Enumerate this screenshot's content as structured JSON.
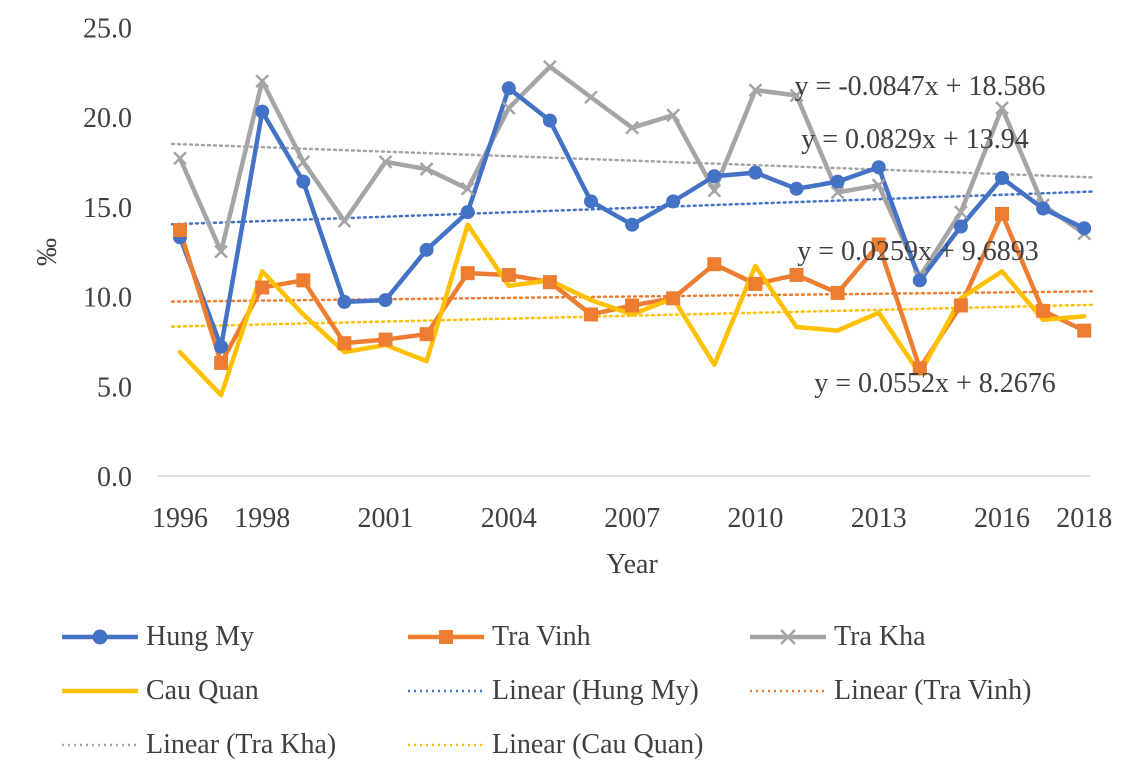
{
  "chart_data": {
    "type": "line",
    "title": "",
    "xlabel": "Year",
    "ylabel": "‰",
    "ylim": [
      0,
      25
    ],
    "ytick_step": 5,
    "ytick_labels": [
      "0.0",
      "5.0",
      "10.0",
      "15.0",
      "20.0",
      "25.0"
    ],
    "x": [
      1996,
      1997,
      1998,
      1999,
      2000,
      2001,
      2002,
      2003,
      2004,
      2005,
      2006,
      2007,
      2008,
      2009,
      2010,
      2011,
      2012,
      2013,
      2014,
      2015,
      2016,
      2017,
      2018
    ],
    "xtick_labels": [
      "1996",
      "1998",
      "2001",
      "2004",
      "2007",
      "2010",
      "2013",
      "2016",
      "2018"
    ],
    "series": [
      {
        "name": "Hung My",
        "color": "#4472C4",
        "marker": "circle",
        "values": [
          13.3,
          7.2,
          20.3,
          16.4,
          9.7,
          9.8,
          12.6,
          14.7,
          21.6,
          19.8,
          15.3,
          14.0,
          15.3,
          16.7,
          16.9,
          16.0,
          16.4,
          17.2,
          10.9,
          13.9,
          16.6,
          14.9,
          13.8
        ]
      },
      {
        "name": "Tra Vinh",
        "color": "#ED7D31",
        "marker": "square",
        "values": [
          13.7,
          6.3,
          10.5,
          10.9,
          7.4,
          7.6,
          7.9,
          11.3,
          11.2,
          10.8,
          9.0,
          9.5,
          9.9,
          11.8,
          10.7,
          11.2,
          10.2,
          12.9,
          6.0,
          9.5,
          14.6,
          9.2,
          8.1
        ]
      },
      {
        "name": "Tra Kha",
        "color": "#A5A5A5",
        "marker": "x",
        "values": [
          17.7,
          12.5,
          22.0,
          17.5,
          14.2,
          17.5,
          17.1,
          16.0,
          20.5,
          22.8,
          21.1,
          19.4,
          20.1,
          15.9,
          21.5,
          21.2,
          15.8,
          16.2,
          11.1,
          14.7,
          20.5,
          15.1,
          13.5
        ]
      },
      {
        "name": "Cau Quan",
        "color": "#FFC000",
        "marker": "none",
        "values": [
          6.9,
          4.5,
          11.4,
          9.0,
          6.9,
          7.3,
          6.4,
          14.0,
          10.6,
          10.9,
          9.8,
          9.0,
          9.9,
          6.2,
          11.7,
          8.3,
          8.1,
          9.1,
          5.7,
          9.9,
          11.4,
          8.7,
          8.9
        ]
      }
    ],
    "trendlines": [
      {
        "name": "Linear (Hung My)",
        "color": "#4472C4",
        "slope": 0.0829,
        "intercept": 13.94,
        "equation": "y = 0.0829x + 13.94"
      },
      {
        "name": "Linear (Tra Vinh)",
        "color": "#ED7D31",
        "slope": 0.0259,
        "intercept": 9.6893,
        "equation": "y = 0.0259x + 9.6893"
      },
      {
        "name": "Linear (Tra Kha)",
        "color": "#A5A5A5",
        "slope": -0.0847,
        "intercept": 18.586,
        "equation": "y = -0.0847x + 18.586"
      },
      {
        "name": "Linear (Cau Quan)",
        "color": "#FFC000",
        "slope": 0.0552,
        "intercept": 8.2676,
        "equation": "y = 0.0552x + 8.2676"
      }
    ],
    "legend_position": "bottom",
    "legend": [
      "Hung My",
      "Tra Vinh",
      "Tra Kha",
      "Cau Quan",
      "Linear (Hung My)",
      "Linear (Tra Vinh)",
      "Linear (Tra Kha)",
      "Linear (Cau Quan)"
    ],
    "grid": false
  }
}
